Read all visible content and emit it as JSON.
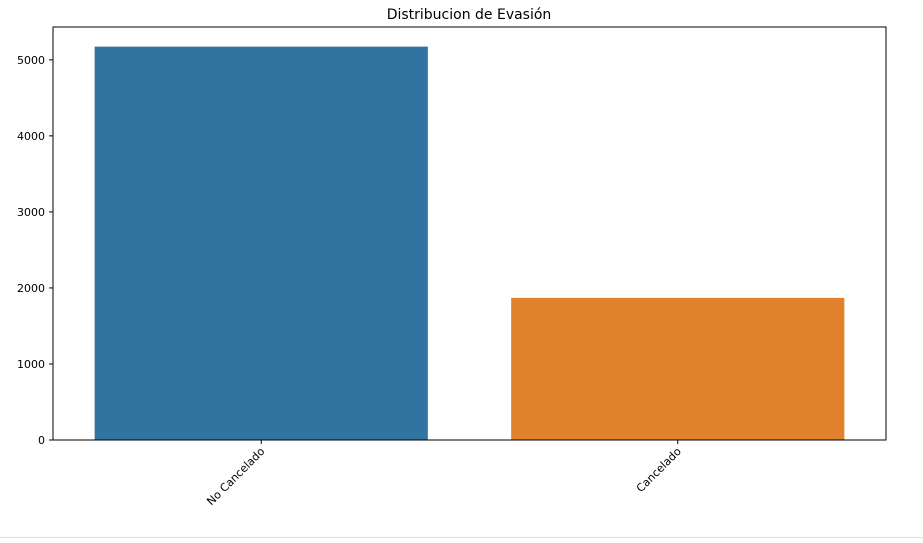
{
  "chart_data": {
    "type": "bar",
    "title": "Distribucion de Evasión",
    "xlabel": "",
    "ylabel": "",
    "categories": [
      "No Cancelado",
      "Cancelado"
    ],
    "values": [
      5174,
      1869
    ],
    "colors": [
      "#3274a1",
      "#e1812c"
    ],
    "ylim": [
      0,
      5432
    ],
    "yticks": [
      0,
      1000,
      2000,
      3000,
      4000,
      5000
    ],
    "grid": false,
    "legend": "none"
  }
}
